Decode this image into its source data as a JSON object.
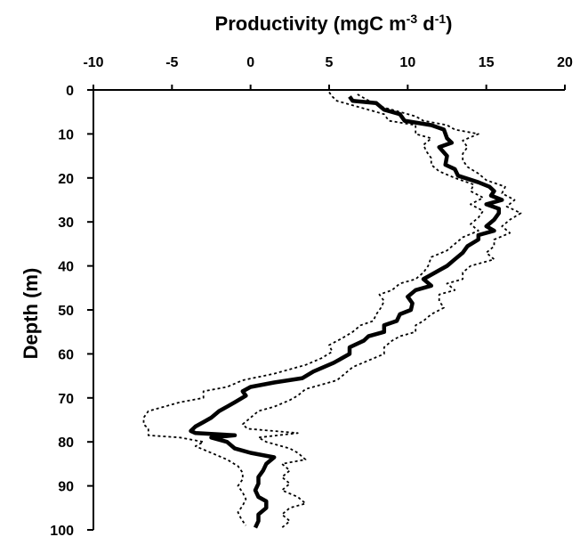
{
  "chart_data": {
    "type": "line",
    "title": "",
    "xlabel": {
      "base": "Productivity (mgC m",
      "sup1": "-3",
      "mid": " d",
      "sup2": "-1",
      "end": ")"
    },
    "ylabel": "Depth (m)",
    "xlim": [
      -10,
      20
    ],
    "ylim": [
      0,
      100
    ],
    "y_inverted": true,
    "x_axis_position": "top",
    "grid": false,
    "legend": "none",
    "x_ticks": [
      "-10",
      "-5",
      "0",
      "5",
      "10",
      "15",
      "20"
    ],
    "y_ticks": [
      "0",
      "10",
      "20",
      "30",
      "40",
      "50",
      "60",
      "70",
      "80",
      "90",
      "100"
    ],
    "series": [
      {
        "style": "solid",
        "color": "#000000",
        "points": [
          [
            6.3,
            1.5
          ],
          [
            6.5,
            2.5
          ],
          [
            8.0,
            3.0
          ],
          [
            8.5,
            4.5
          ],
          [
            9.5,
            5.5
          ],
          [
            9.8,
            7.0
          ],
          [
            11.5,
            8.0
          ],
          [
            12.3,
            9.0
          ],
          [
            12.5,
            11.0
          ],
          [
            12.8,
            12.0
          ],
          [
            12.0,
            13.0
          ],
          [
            12.5,
            15.0
          ],
          [
            12.4,
            17.0
          ],
          [
            13.0,
            18.0
          ],
          [
            13.2,
            19.5
          ],
          [
            14.5,
            21.0
          ],
          [
            15.2,
            22.0
          ],
          [
            15.5,
            23.0
          ],
          [
            15.3,
            24.0
          ],
          [
            16.0,
            25.0
          ],
          [
            15.0,
            26.0
          ],
          [
            15.8,
            27.0
          ],
          [
            15.8,
            28.0
          ],
          [
            15.5,
            29.5
          ],
          [
            15.0,
            31.0
          ],
          [
            15.5,
            32.0
          ],
          [
            14.5,
            33.0
          ],
          [
            14.5,
            34.0
          ],
          [
            13.8,
            35.5
          ],
          [
            13.5,
            37.0
          ],
          [
            13.0,
            38.5
          ],
          [
            12.5,
            40.0
          ],
          [
            12.0,
            41.0
          ],
          [
            11.5,
            42.0
          ],
          [
            11.0,
            43.0
          ],
          [
            11.5,
            44.5
          ],
          [
            10.5,
            45.5
          ],
          [
            10.0,
            47.0
          ],
          [
            10.3,
            48.5
          ],
          [
            10.2,
            50.0
          ],
          [
            9.5,
            51.0
          ],
          [
            9.3,
            52.5
          ],
          [
            8.5,
            53.5
          ],
          [
            8.5,
            55.0
          ],
          [
            7.5,
            56.0
          ],
          [
            7.2,
            57.0
          ],
          [
            6.3,
            58.5
          ],
          [
            6.3,
            60.0
          ],
          [
            5.3,
            62.0
          ],
          [
            4.0,
            64.0
          ],
          [
            3.3,
            65.5
          ],
          [
            1.5,
            66.5
          ],
          [
            0.0,
            67.5
          ],
          [
            -0.5,
            68.5
          ],
          [
            -0.3,
            69.5
          ],
          [
            -1.0,
            71.0
          ],
          [
            -1.5,
            72.0
          ],
          [
            -2.0,
            73.0
          ],
          [
            -2.5,
            74.5
          ],
          [
            -3.0,
            75.5
          ],
          [
            -3.5,
            76.5
          ],
          [
            -3.8,
            77.5
          ],
          [
            -3.5,
            78.0
          ],
          [
            -1.0,
            78.5
          ],
          [
            -2.5,
            79.0
          ],
          [
            -1.5,
            80.0
          ],
          [
            -1.0,
            81.5
          ],
          [
            0.0,
            82.5
          ],
          [
            1.5,
            83.5
          ],
          [
            1.0,
            85.0
          ],
          [
            0.8,
            86.5
          ],
          [
            0.5,
            88.0
          ],
          [
            0.5,
            89.5
          ],
          [
            0.3,
            91.0
          ],
          [
            0.5,
            92.5
          ],
          [
            1.0,
            93.5
          ],
          [
            1.0,
            95.0
          ],
          [
            0.5,
            96.5
          ],
          [
            0.5,
            98.0
          ],
          [
            0.3,
            99.5
          ]
        ]
      },
      {
        "style": "dotted",
        "color": "#000000",
        "points": [
          [
            5.0,
            0.5
          ],
          [
            5.2,
            1.5
          ],
          [
            5.5,
            2.5
          ],
          [
            6.5,
            3.5
          ],
          [
            7.5,
            4.5
          ],
          [
            8.5,
            5.5
          ],
          [
            8.8,
            7.0
          ],
          [
            10.5,
            8.0
          ],
          [
            10.5,
            10.0
          ],
          [
            11.5,
            11.0
          ],
          [
            11.0,
            12.5
          ],
          [
            11.2,
            14.0
          ],
          [
            11.5,
            15.5
          ],
          [
            11.5,
            17.0
          ],
          [
            12.0,
            18.5
          ],
          [
            13.0,
            20.0
          ],
          [
            14.2,
            21.5
          ],
          [
            14.0,
            23.0
          ],
          [
            14.8,
            24.5
          ],
          [
            14.0,
            26.0
          ],
          [
            14.8,
            27.5
          ],
          [
            14.5,
            29.0
          ],
          [
            14.0,
            30.5
          ],
          [
            14.5,
            32.0
          ],
          [
            13.5,
            33.5
          ],
          [
            13.0,
            35.0
          ],
          [
            12.5,
            36.5
          ],
          [
            11.5,
            38.0
          ],
          [
            11.3,
            40.0
          ],
          [
            11.0,
            41.5
          ],
          [
            10.5,
            43.0
          ],
          [
            9.5,
            44.0
          ],
          [
            9.0,
            45.5
          ],
          [
            8.2,
            46.5
          ],
          [
            8.5,
            48.0
          ],
          [
            8.3,
            49.5
          ],
          [
            8.0,
            51.0
          ],
          [
            7.8,
            52.5
          ],
          [
            7.0,
            53.5
          ],
          [
            6.5,
            55.0
          ],
          [
            5.8,
            56.5
          ],
          [
            5.0,
            58.0
          ],
          [
            5.2,
            59.5
          ],
          [
            4.5,
            61.0
          ],
          [
            3.5,
            62.5
          ],
          [
            1.5,
            64.5
          ],
          [
            -0.5,
            66.0
          ],
          [
            -1.5,
            67.5
          ],
          [
            -3.0,
            68.5
          ],
          [
            -3.0,
            70.0
          ],
          [
            -4.5,
            71.0
          ],
          [
            -5.5,
            72.0
          ],
          [
            -6.5,
            73.0
          ],
          [
            -6.8,
            74.5
          ],
          [
            -6.8,
            76.0
          ],
          [
            -6.5,
            77.0
          ],
          [
            -6.5,
            78.5
          ],
          [
            -4.5,
            79.0
          ],
          [
            -3.0,
            80.0
          ],
          [
            -3.5,
            81.0
          ],
          [
            -2.5,
            82.5
          ],
          [
            -1.5,
            84.0
          ],
          [
            -0.8,
            85.5
          ],
          [
            -0.5,
            87.0
          ],
          [
            -0.5,
            88.5
          ],
          [
            -0.8,
            90.0
          ],
          [
            -0.5,
            91.5
          ],
          [
            -0.3,
            93.0
          ],
          [
            -0.5,
            94.5
          ],
          [
            -0.8,
            96.0
          ],
          [
            -0.6,
            97.5
          ],
          [
            -0.3,
            99.0
          ]
        ]
      },
      {
        "style": "dotted",
        "color": "#000000",
        "points": [
          [
            6.8,
            1.0
          ],
          [
            7.3,
            2.0
          ],
          [
            7.8,
            3.0
          ],
          [
            8.5,
            4.0
          ],
          [
            9.5,
            5.0
          ],
          [
            10.5,
            6.0
          ],
          [
            11.0,
            7.0
          ],
          [
            12.5,
            8.0
          ],
          [
            13.0,
            9.0
          ],
          [
            14.5,
            10.0
          ],
          [
            13.5,
            11.5
          ],
          [
            13.8,
            13.0
          ],
          [
            13.5,
            14.5
          ],
          [
            13.5,
            16.0
          ],
          [
            13.8,
            17.5
          ],
          [
            14.5,
            19.0
          ],
          [
            15.0,
            20.5
          ],
          [
            16.2,
            22.0
          ],
          [
            16.0,
            23.5
          ],
          [
            16.8,
            25.0
          ],
          [
            16.3,
            26.5
          ],
          [
            17.2,
            28.0
          ],
          [
            16.5,
            29.5
          ],
          [
            16.0,
            31.0
          ],
          [
            16.5,
            32.5
          ],
          [
            15.5,
            34.0
          ],
          [
            15.5,
            35.5
          ],
          [
            15.0,
            37.0
          ],
          [
            15.5,
            38.5
          ],
          [
            14.0,
            40.0
          ],
          [
            13.5,
            41.5
          ],
          [
            13.5,
            43.0
          ],
          [
            12.5,
            44.0
          ],
          [
            13.0,
            45.5
          ],
          [
            12.0,
            46.5
          ],
          [
            12.0,
            48.0
          ],
          [
            12.3,
            49.5
          ],
          [
            11.5,
            51.0
          ],
          [
            11.0,
            52.5
          ],
          [
            10.5,
            53.5
          ],
          [
            10.5,
            55.0
          ],
          [
            9.5,
            56.0
          ],
          [
            9.0,
            57.0
          ],
          [
            8.5,
            58.5
          ],
          [
            8.5,
            60.0
          ],
          [
            7.5,
            61.5
          ],
          [
            6.5,
            63.0
          ],
          [
            6.0,
            64.5
          ],
          [
            5.5,
            66.0
          ],
          [
            4.5,
            67.0
          ],
          [
            3.5,
            68.0
          ],
          [
            3.0,
            69.5
          ],
          [
            2.5,
            70.5
          ],
          [
            1.5,
            72.0
          ],
          [
            0.5,
            73.0
          ],
          [
            0.0,
            74.5
          ],
          [
            -0.5,
            76.0
          ],
          [
            -0.2,
            77.0
          ],
          [
            3.0,
            78.0
          ],
          [
            0.5,
            79.0
          ],
          [
            1.0,
            80.0
          ],
          [
            2.5,
            81.5
          ],
          [
            3.0,
            82.5
          ],
          [
            3.5,
            84.0
          ],
          [
            2.0,
            85.0
          ],
          [
            2.5,
            86.5
          ],
          [
            2.0,
            88.0
          ],
          [
            2.5,
            89.5
          ],
          [
            2.0,
            91.0
          ],
          [
            3.0,
            92.5
          ],
          [
            3.5,
            94.0
          ],
          [
            2.5,
            95.0
          ],
          [
            2.0,
            96.5
          ],
          [
            2.5,
            98.0
          ],
          [
            2.0,
            99.5
          ]
        ]
      }
    ]
  }
}
